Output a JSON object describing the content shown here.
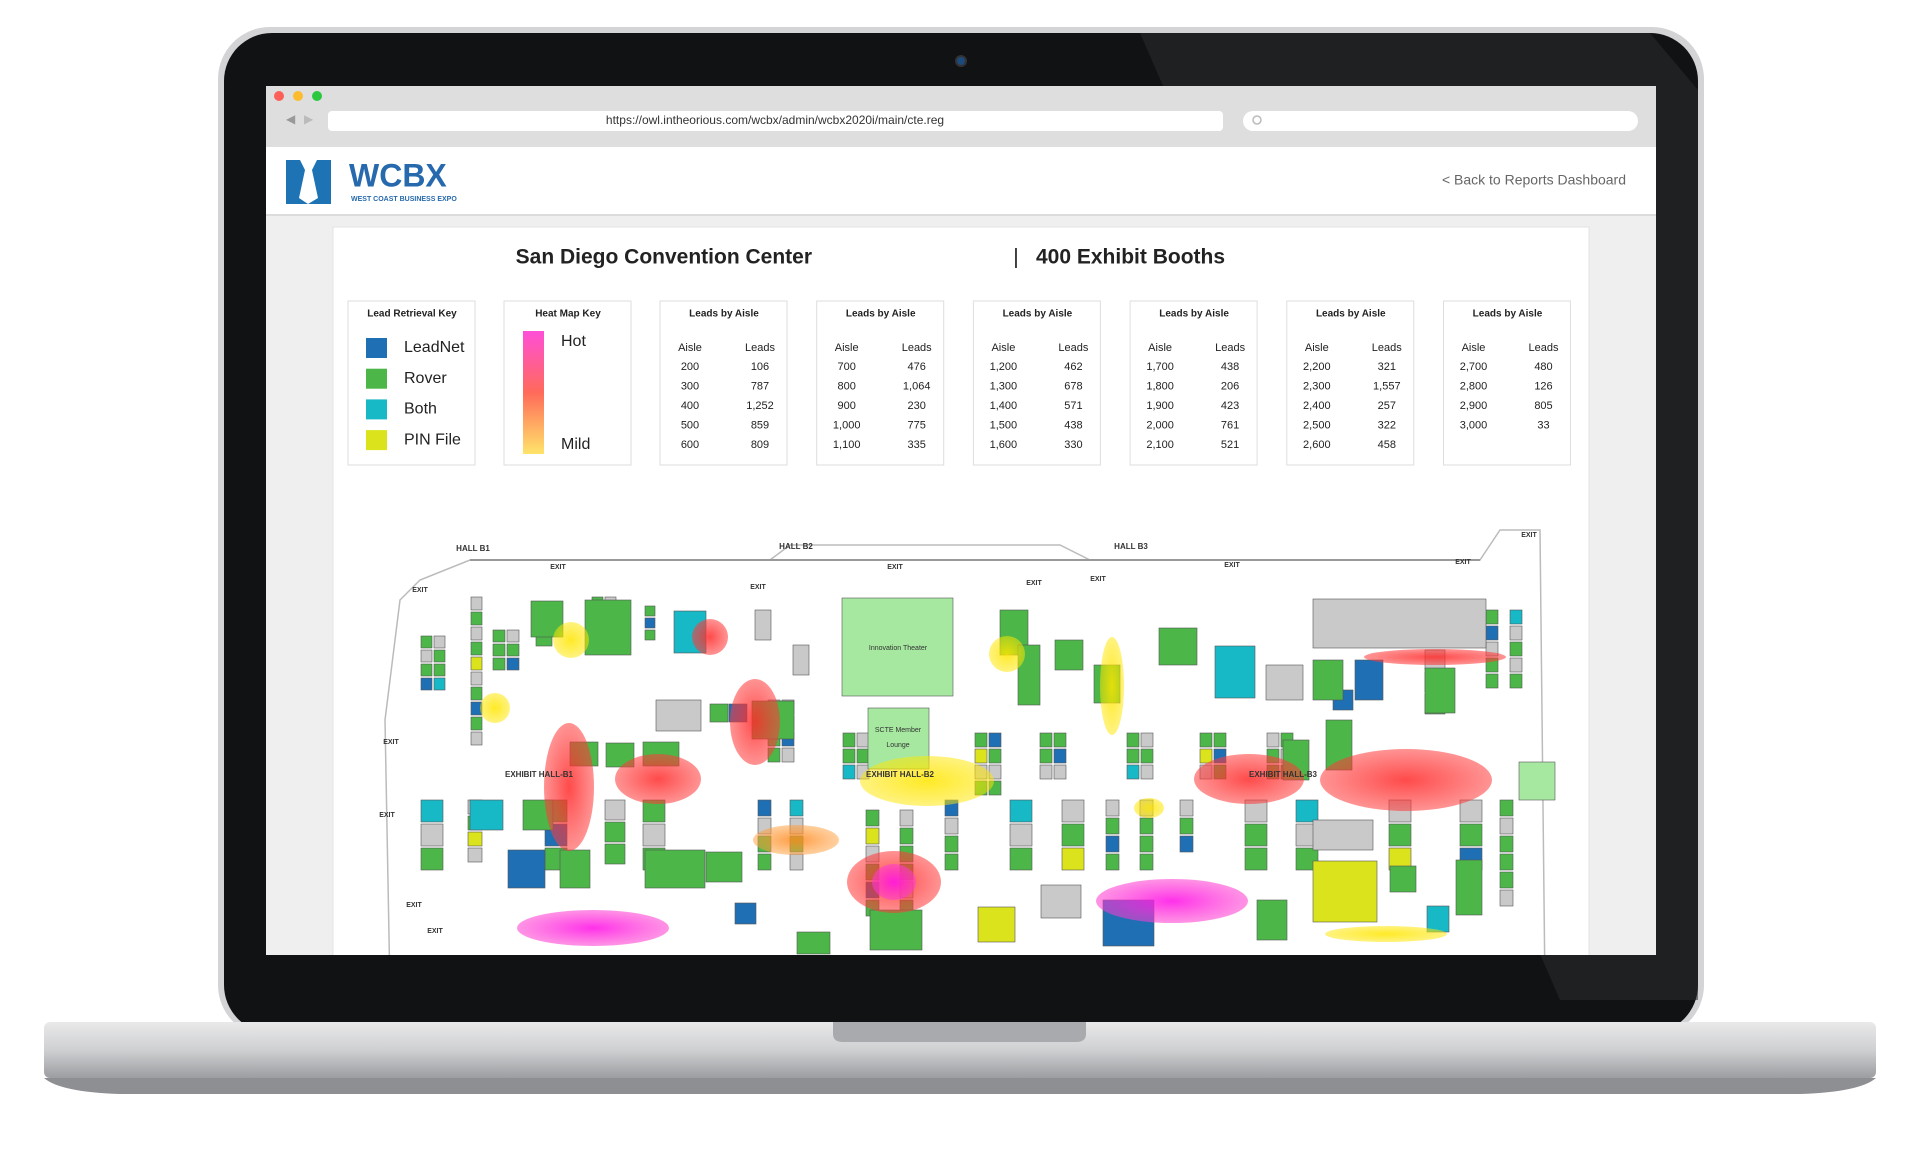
{
  "browser": {
    "url": "https://owl.intheorious.com/wcbx/admin/wcbx2020i/main/cte.reg"
  },
  "header": {
    "logo": "WCBX",
    "tagline": "WEST COAST BUSINESS EXPO",
    "back_link": "< Back to Reports Dashboard"
  },
  "title": {
    "venue": "San Diego Convention Center",
    "separator": "|",
    "booths": "400 Exhibit Booths"
  },
  "lead_key": {
    "title": "Lead Retrieval Key",
    "items": [
      {
        "label": "LeadNet",
        "color": "#1f6fb5"
      },
      {
        "label": "Rover",
        "color": "#4cb748"
      },
      {
        "label": "Both",
        "color": "#17b9c6"
      },
      {
        "label": "PIN File",
        "color": "#dbe31c"
      }
    ]
  },
  "heat_key": {
    "title": "Heat Map Key",
    "hot": "Hot",
    "mild": "Mild"
  },
  "aisle_tables": [
    {
      "title": "Leads by Aisle",
      "headers": [
        "Aisle",
        "Leads"
      ],
      "rows": [
        [
          "200",
          "106"
        ],
        [
          "300",
          "787"
        ],
        [
          "400",
          "1,252"
        ],
        [
          "500",
          "859"
        ],
        [
          "600",
          "809"
        ]
      ]
    },
    {
      "title": "Leads by Aisle",
      "headers": [
        "Aisle",
        "Leads"
      ],
      "rows": [
        [
          "700",
          "476"
        ],
        [
          "800",
          "1,064"
        ],
        [
          "900",
          "230"
        ],
        [
          "1,000",
          "775"
        ],
        [
          "1,100",
          "335"
        ]
      ]
    },
    {
      "title": "Leads by Aisle",
      "headers": [
        "Aisle",
        "Leads"
      ],
      "rows": [
        [
          "1,200",
          "462"
        ],
        [
          "1,300",
          "678"
        ],
        [
          "1,400",
          "571"
        ],
        [
          "1,500",
          "438"
        ],
        [
          "1,600",
          "330"
        ]
      ]
    },
    {
      "title": "Leads by Aisle",
      "headers": [
        "Aisle",
        "Leads"
      ],
      "rows": [
        [
          "1,700",
          "438"
        ],
        [
          "1,800",
          "206"
        ],
        [
          "1,900",
          "423"
        ],
        [
          "2,000",
          "761"
        ],
        [
          "2,100",
          "521"
        ]
      ]
    },
    {
      "title": "Leads by Aisle",
      "headers": [
        "Aisle",
        "Leads"
      ],
      "rows": [
        [
          "2,200",
          "321"
        ],
        [
          "2,300",
          "1,557"
        ],
        [
          "2,400",
          "257"
        ],
        [
          "2,500",
          "322"
        ],
        [
          "2,600",
          "458"
        ]
      ]
    },
    {
      "title": "Leads by Aisle",
      "headers": [
        "Aisle",
        "Leads"
      ],
      "rows": [
        [
          "2,700",
          "480"
        ],
        [
          "2,800",
          "126"
        ],
        [
          "2,900",
          "805"
        ],
        [
          "3,000",
          "33"
        ]
      ]
    }
  ],
  "floor_plan": {
    "halls": [
      "HALL B1",
      "HALL B2",
      "HALL B3"
    ],
    "exhibit_halls": [
      "EXHIBIT HALL-B1",
      "EXHIBIT HALL-B2",
      "EXHIBIT HALL-B3"
    ],
    "exit": "EXIT",
    "theater": "Innovation Theater",
    "lounge": [
      "SCTE Member",
      "Lounge"
    ]
  }
}
